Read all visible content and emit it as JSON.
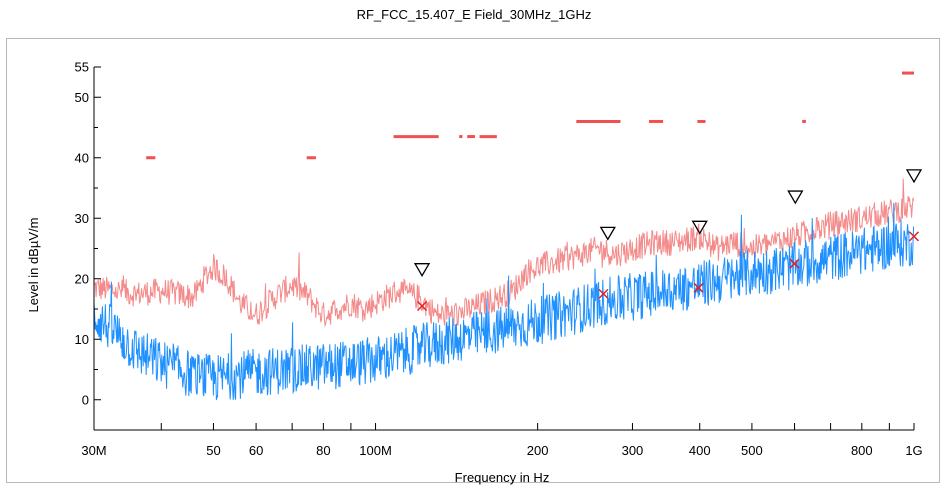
{
  "chart_data": {
    "type": "line",
    "title": "RF_FCC_15.407_E Field_30MHz_1GHz",
    "xlabel": "Frequency in Hz",
    "ylabel": "Level in dBµV/m",
    "x_scale": "log",
    "xlim": [
      30000000,
      1000000000
    ],
    "ylim": [
      -5,
      55
    ],
    "x_ticks": [
      {
        "value": 30000000,
        "label": "30M"
      },
      {
        "value": 50000000,
        "label": "50"
      },
      {
        "value": 60000000,
        "label": "60"
      },
      {
        "value": 80000000,
        "label": "80"
      },
      {
        "value": 100000000,
        "label": "100M"
      },
      {
        "value": 200000000,
        "label": "200"
      },
      {
        "value": 300000000,
        "label": "300"
      },
      {
        "value": 400000000,
        "label": "400"
      },
      {
        "value": 500000000,
        "label": "500"
      },
      {
        "value": 800000000,
        "label": "800"
      },
      {
        "value": 1000000000,
        "label": "1G"
      }
    ],
    "y_ticks": [
      {
        "value": 0,
        "label": "0"
      },
      {
        "value": 10,
        "label": "10"
      },
      {
        "value": 20,
        "label": "20"
      },
      {
        "value": 30,
        "label": "30"
      },
      {
        "value": 40,
        "label": "40"
      },
      {
        "value": 50,
        "label": "50"
      },
      {
        "value": 55,
        "label": "55"
      }
    ],
    "grid": false,
    "series": [
      {
        "color": "#f48a8a",
        "x": [
          30000000,
          33000000,
          36000000,
          40000000,
          43000000,
          46000000,
          48000000,
          50000000,
          53000000,
          56000000,
          60000000,
          65000000,
          70000000,
          75000000,
          80000000,
          85000000,
          90000000,
          95000000,
          100000000,
          110000000,
          120000000,
          130000000,
          140000000,
          150000000,
          170000000,
          180000000,
          190000000,
          200000000,
          220000000,
          240000000,
          260000000,
          280000000,
          300000000,
          330000000,
          360000000,
          400000000,
          430000000,
          460000000,
          500000000,
          550000000,
          600000000,
          650000000,
          700000000,
          800000000,
          900000000,
          1000000000
        ],
        "y": [
          18.5,
          18,
          17.5,
          18,
          17.5,
          17,
          20,
          22,
          20,
          16,
          14,
          17,
          19,
          17,
          14,
          15,
          16,
          15,
          16,
          18,
          17,
          14,
          14,
          15,
          17,
          18,
          21,
          22,
          23,
          24,
          25,
          24,
          25,
          26,
          26,
          27,
          25,
          26,
          25,
          26,
          27,
          28,
          29,
          30,
          31,
          32
        ]
      },
      {
        "color": "#1e90ff",
        "x": [
          30000000,
          33000000,
          36000000,
          40000000,
          43000000,
          46000000,
          50000000,
          55000000,
          60000000,
          70000000,
          80000000,
          90000000,
          100000000,
          110000000,
          120000000,
          140000000,
          160000000,
          180000000,
          200000000,
          230000000,
          260000000,
          300000000,
          350000000,
          400000000,
          450000000,
          500000000,
          600000000,
          700000000,
          800000000,
          900000000,
          1000000000
        ],
        "y": [
          14,
          11,
          8,
          6,
          5,
          4,
          3.5,
          4,
          4.5,
          5,
          5.5,
          6,
          6.5,
          7.5,
          8.5,
          10,
          11,
          12,
          13,
          14.5,
          16,
          17,
          18,
          19,
          20,
          21,
          22,
          23.5,
          24.5,
          25.5,
          26
        ]
      }
    ],
    "limit_segments": [
      {
        "x1": 37500000,
        "x2": 39000000,
        "y": 40
      },
      {
        "x1": 74500000,
        "x2": 77500000,
        "y": 40
      },
      {
        "x1": 108000000,
        "x2": 131000000,
        "y": 43.5
      },
      {
        "x1": 143000000,
        "x2": 145000000,
        "y": 43.5
      },
      {
        "x1": 148000000,
        "x2": 153000000,
        "y": 43.5
      },
      {
        "x1": 156000000,
        "x2": 168000000,
        "y": 43.5
      },
      {
        "x1": 236000000,
        "x2": 285000000,
        "y": 46
      },
      {
        "x1": 322000000,
        "x2": 342000000,
        "y": 46
      },
      {
        "x1": 396000000,
        "x2": 410000000,
        "y": 46
      },
      {
        "x1": 620000000,
        "x2": 630000000,
        "y": 46
      },
      {
        "x1": 950000000,
        "x2": 1000000000,
        "y": 54
      }
    ],
    "peak_markers": [
      {
        "x": 122000000,
        "y": 21.5
      },
      {
        "x": 270000000,
        "y": 27.5
      },
      {
        "x": 400000000,
        "y": 28.5
      },
      {
        "x": 602000000,
        "y": 33.5
      },
      {
        "x": 1000000000,
        "y": 37
      }
    ],
    "final_markers": [
      {
        "x": 122000000,
        "y": 15.5
      },
      {
        "x": 265000000,
        "y": 17.5
      },
      {
        "x": 398000000,
        "y": 18.5
      },
      {
        "x": 600000000,
        "y": 22.5
      },
      {
        "x": 1000000000,
        "y": 27
      }
    ],
    "colors": {
      "peak_trace": "#f48a8a",
      "average_trace": "#1e90ff",
      "limit": "#f05050",
      "final_marker": "#e02020",
      "peak_marker": "#000000"
    }
  }
}
